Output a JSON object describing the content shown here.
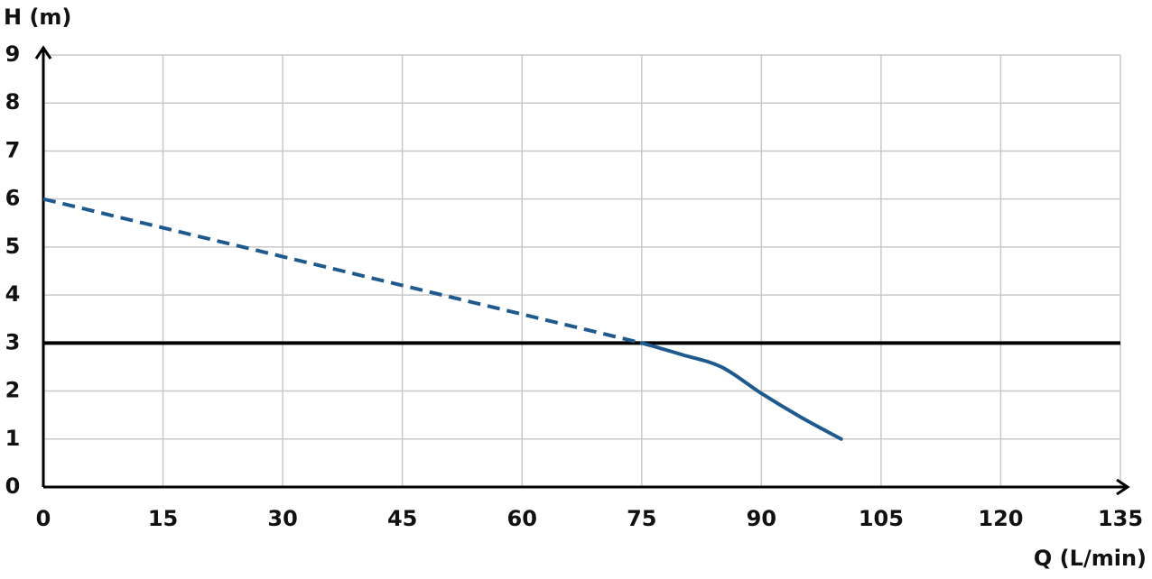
{
  "chart_data": {
    "type": "line",
    "y_label": "H (m)",
    "x_label": "Q (L/min)",
    "xlim": [
      0,
      135
    ],
    "xticks": [
      0,
      15,
      30,
      45,
      60,
      75,
      90,
      105,
      120,
      135
    ],
    "ylim": [
      0,
      9
    ],
    "yticks": [
      0,
      1,
      2,
      3,
      4,
      5,
      6,
      7,
      8,
      9
    ],
    "grid": true,
    "hline": 3,
    "hline_color": "#000000",
    "series": [
      {
        "color": "#1f5a8e",
        "dashed": true,
        "x": [
          0,
          75
        ],
        "values": [
          6,
          3
        ]
      },
      {
        "color": "#1f5a8e",
        "dashed": false,
        "x": [
          75,
          80,
          85,
          90,
          95,
          100
        ],
        "values": [
          3,
          2.76,
          2.5,
          1.95,
          1.45,
          1
        ]
      }
    ]
  }
}
